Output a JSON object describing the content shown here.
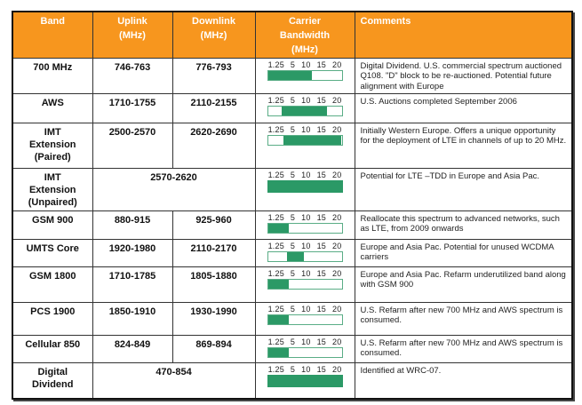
{
  "table": {
    "headers": {
      "band": "Band",
      "uplink_1": "Uplink",
      "uplink_2": "(MHz)",
      "downlink_1": "Downlink",
      "downlink_2": "(MHz)",
      "carrier_1": "Carrier",
      "carrier_2": "Bandwidth",
      "carrier_3": "(MHz)",
      "comments": "Comments"
    },
    "scale_ticks": [
      "1.25",
      "5",
      "10",
      "15",
      "20"
    ],
    "colors": {
      "header_bg": "#f7961e",
      "header_text": "#ffffff",
      "bar_fill": "#2b9966",
      "bar_border": "#5aad86"
    },
    "rows": [
      {
        "band": "700 MHz",
        "uplink": "746-763",
        "downlink": "776-793",
        "bar_start_pct": 0,
        "bar_end_pct": 60,
        "comment": "Digital Dividend. U.S. commercial spectrum auctioned Q108. \"D\" block to be re-auctioned. Potential future alignment with Europe"
      },
      {
        "band": "AWS",
        "uplink": "1710-1755",
        "downlink": "2110-2155",
        "bar_start_pct": 19,
        "bar_end_pct": 80,
        "comment": "U.S. Auctions completed September 2006"
      },
      {
        "band_lines": [
          "IMT",
          "Extension",
          "(Paired)"
        ],
        "uplink": "2500-2570",
        "downlink": "2620-2690",
        "bar_start_pct": 21,
        "bar_end_pct": 100,
        "comment": "Initially Western Europe. Offers a unique opportunity for the deployment of LTE in channels of up to 20 MHz."
      },
      {
        "band_lines": [
          "IMT",
          "Extension",
          "(Unpaired)"
        ],
        "uplink_downlink": "2570-2620",
        "bar_start_pct": 0,
        "bar_end_pct": 100,
        "comment": "Potential for LTE –TDD in Europe and Asia Pac."
      },
      {
        "band": "GSM 900",
        "uplink": "880-915",
        "downlink": "925-960",
        "bar_start_pct": 0,
        "bar_end_pct": 28,
        "comment": "Reallocate this spectrum to advanced networks, such as LTE, from 2009 onwards"
      },
      {
        "band": "UMTS Core",
        "uplink": "1920-1980",
        "downlink": "2110-2170",
        "bar_start_pct": 26,
        "bar_end_pct": 49,
        "comment": "Europe and Asia Pac. Potential for unused WCDMA carriers"
      },
      {
        "band": "GSM 1800",
        "uplink": "1710-1785",
        "downlink": "1805-1880",
        "bar_start_pct": 0,
        "bar_end_pct": 28,
        "comment": "Europe and Asia Pac. Refarm underutilized band along with GSM 900"
      },
      {
        "band": "PCS 1900",
        "uplink": "1850-1910",
        "downlink": "1930-1990",
        "bar_start_pct": 0,
        "bar_end_pct": 28,
        "comment": "U.S. Refarm after new 700 MHz and AWS spectrum is consumed."
      },
      {
        "band": "Cellular 850",
        "uplink": "824-849",
        "downlink": "869-894",
        "bar_start_pct": 0,
        "bar_end_pct": 28,
        "comment": "U.S. Refarm after new 700 MHz and AWS spectrum is consumed."
      },
      {
        "band_lines": [
          "Digital",
          "Dividend"
        ],
        "uplink_downlink": "470-854",
        "bar_start_pct": 0,
        "bar_end_pct": 100,
        "comment": "Identified at WRC-07."
      }
    ]
  }
}
